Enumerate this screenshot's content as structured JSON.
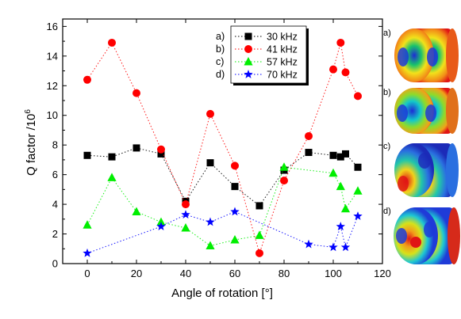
{
  "chart_data": {
    "type": "scatter",
    "connected": true,
    "line_style": "dotted",
    "xlabel": "Angle of rotation [°]",
    "ylabel": "Q factor  /10",
    "ylabel_exponent": "6",
    "xlim": [
      -10,
      120
    ],
    "ylim": [
      0,
      16.5
    ],
    "xticks": [
      0,
      20,
      40,
      60,
      80,
      100,
      120
    ],
    "yticks": [
      0,
      2,
      4,
      6,
      8,
      10,
      12,
      14,
      16
    ],
    "legend_position": "top-center",
    "series": [
      {
        "tag": "a)",
        "name": "30 kHz",
        "marker": "square",
        "color": "#000000",
        "x": [
          0,
          10,
          20,
          30,
          40,
          50,
          60,
          70,
          80,
          90,
          100,
          103,
          105,
          110
        ],
        "y": [
          7.3,
          7.2,
          7.8,
          7.4,
          4.2,
          6.8,
          5.2,
          3.9,
          6.3,
          7.5,
          7.3,
          7.2,
          7.4,
          6.5
        ]
      },
      {
        "tag": "b)",
        "name": "41 kHz",
        "marker": "circle",
        "color": "#ff0000",
        "x": [
          0,
          10,
          20,
          30,
          40,
          50,
          60,
          70,
          80,
          90,
          100,
          103,
          105,
          110
        ],
        "y": [
          12.4,
          14.9,
          11.5,
          7.7,
          4.0,
          10.1,
          6.6,
          0.7,
          5.6,
          8.6,
          13.1,
          14.9,
          12.9,
          11.3
        ]
      },
      {
        "tag": "c)",
        "name": "57 kHz",
        "marker": "triangle",
        "color": "#00ee00",
        "x": [
          0,
          10,
          20,
          30,
          40,
          50,
          60,
          70,
          80,
          100,
          103,
          105,
          110
        ],
        "y": [
          2.6,
          5.8,
          3.5,
          2.8,
          2.4,
          1.2,
          1.6,
          1.9,
          6.5,
          6.1,
          5.2,
          3.7,
          4.9
        ]
      },
      {
        "tag": "d)",
        "name": "70 kHz",
        "marker": "star",
        "color": "#0000ff",
        "x": [
          0,
          30,
          40,
          50,
          60,
          90,
          100,
          103,
          105,
          110
        ],
        "y": [
          0.7,
          2.5,
          3.3,
          2.8,
          3.5,
          1.3,
          1.1,
          2.5,
          1.1,
          3.2
        ]
      }
    ],
    "mode_panels": [
      {
        "label": "a)",
        "description": "30 kHz mode shape"
      },
      {
        "label": "b)",
        "description": "41 kHz mode shape"
      },
      {
        "label": "c)",
        "description": "57 kHz mode shape"
      },
      {
        "label": "d)",
        "description": "70 kHz mode shape"
      }
    ]
  }
}
